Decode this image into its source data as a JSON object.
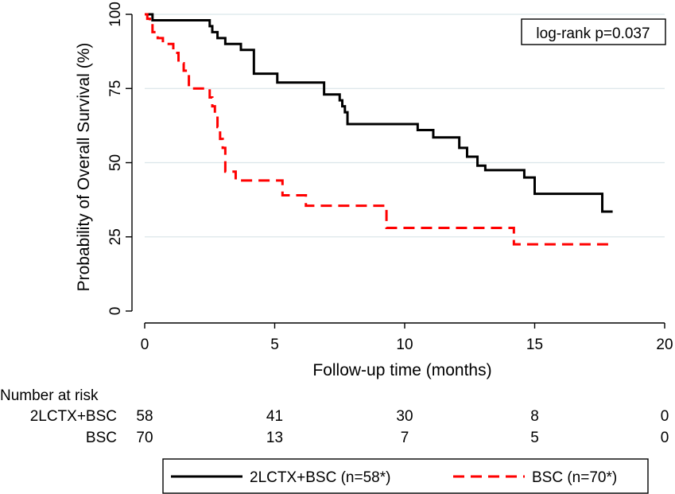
{
  "chart_data": {
    "type": "line",
    "subtype": "kaplan-meier step",
    "xlabel": "Follow-up time (months)",
    "ylabel": "Probability of Overall Survival (%)",
    "xlim": [
      0,
      20
    ],
    "ylim": [
      0,
      100
    ],
    "xticks": [
      0,
      5,
      10,
      15,
      20
    ],
    "yticks": [
      0,
      25,
      50,
      75,
      100
    ],
    "grid": "horizontal",
    "annotation": "log-rank p=0.037",
    "legend_position": "bottom",
    "series": [
      {
        "name": "2LCTX+BSC (n=58*)",
        "color": "#000000",
        "dash": "solid",
        "x": [
          0,
          0.3,
          2.5,
          2.6,
          2.8,
          3.1,
          3.3,
          3.7,
          4.2,
          5.1,
          6.9,
          7.1,
          7.5,
          7.6,
          7.7,
          7.8,
          10.5,
          11.1,
          12.1,
          12.4,
          12.8,
          13.1,
          13.5,
          14.2,
          14.6,
          15.0,
          17.6,
          18.0
        ],
        "y": [
          100,
          98,
          96,
          94,
          92,
          90,
          90,
          88,
          80,
          77,
          73,
          73,
          71,
          69,
          67,
          63,
          61,
          58.5,
          55,
          52,
          49,
          47.5,
          47.5,
          47.5,
          45,
          39.5,
          33.5,
          33.5
        ]
      },
      {
        "name": "BSC (n=70*)",
        "color": "#ff0000",
        "dash": "dashed",
        "x": [
          0,
          0.1,
          0.2,
          0.3,
          0.5,
          0.7,
          1.1,
          1.3,
          1.5,
          1.7,
          2.5,
          2.6,
          2.7,
          2.8,
          2.9,
          3.0,
          3.1,
          3.5,
          5.3,
          6.2,
          9.3,
          14.2,
          18.0
        ],
        "y": [
          100,
          98.5,
          97,
          94,
          92,
          90,
          87,
          83.5,
          81,
          75,
          72,
          69,
          66,
          62,
          58,
          55,
          47,
          44,
          39,
          35.5,
          28,
          22.5,
          22.5
        ]
      }
    ],
    "risk_table": {
      "title": "Number at risk",
      "times": [
        0,
        5,
        10,
        15,
        20
      ],
      "rows": [
        {
          "label": "2LCTX+BSC",
          "counts": [
            "58",
            "41",
            "30",
            "8",
            "0"
          ]
        },
        {
          "label": "BSC",
          "counts": [
            "70",
            "13",
            "7",
            "5",
            "0"
          ]
        }
      ]
    }
  }
}
